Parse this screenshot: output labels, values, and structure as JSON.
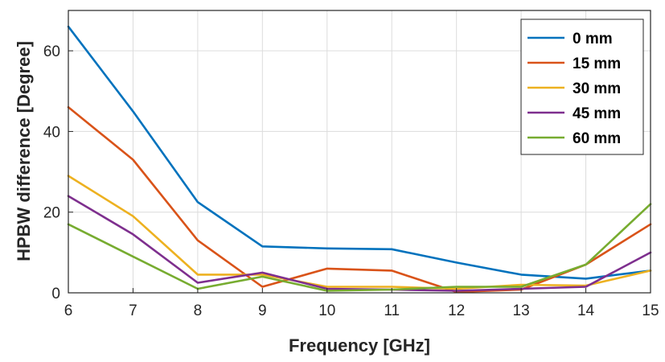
{
  "chart_data": {
    "type": "line",
    "xlabel": "Frequency [GHz]",
    "ylabel": "HPBW difference [Degree]",
    "xlim": [
      6,
      15
    ],
    "ylim": [
      0,
      70
    ],
    "xticks": [
      6,
      7,
      8,
      9,
      10,
      11,
      12,
      13,
      14,
      15
    ],
    "yticks": [
      0,
      20,
      40,
      60
    ],
    "grid": true,
    "legend_position": "top-right",
    "x": [
      6,
      7,
      8,
      9,
      10,
      11,
      12,
      13,
      14,
      15
    ],
    "series": [
      {
        "name": "0 mm",
        "color": "#0072BD",
        "values": [
          66,
          45,
          22.5,
          11.5,
          11,
          10.8,
          7.5,
          4.5,
          3.5,
          5.5
        ]
      },
      {
        "name": "15 mm",
        "color": "#D95319",
        "values": [
          46,
          33,
          13,
          1.5,
          6,
          5.5,
          0.2,
          0.8,
          7,
          17
        ]
      },
      {
        "name": "30 mm",
        "color": "#EDB120",
        "values": [
          29,
          19,
          4.5,
          4.5,
          1.5,
          1.5,
          1,
          2,
          1.8,
          5.5
        ]
      },
      {
        "name": "45 mm",
        "color": "#7E2F8E",
        "values": [
          24,
          14.5,
          2.5,
          5,
          1,
          0.8,
          0.5,
          1,
          1.5,
          10
        ]
      },
      {
        "name": "60 mm",
        "color": "#77AC30",
        "values": [
          17,
          9,
          1,
          4,
          0.5,
          0.8,
          1.5,
          1.5,
          7,
          22
        ]
      }
    ]
  }
}
